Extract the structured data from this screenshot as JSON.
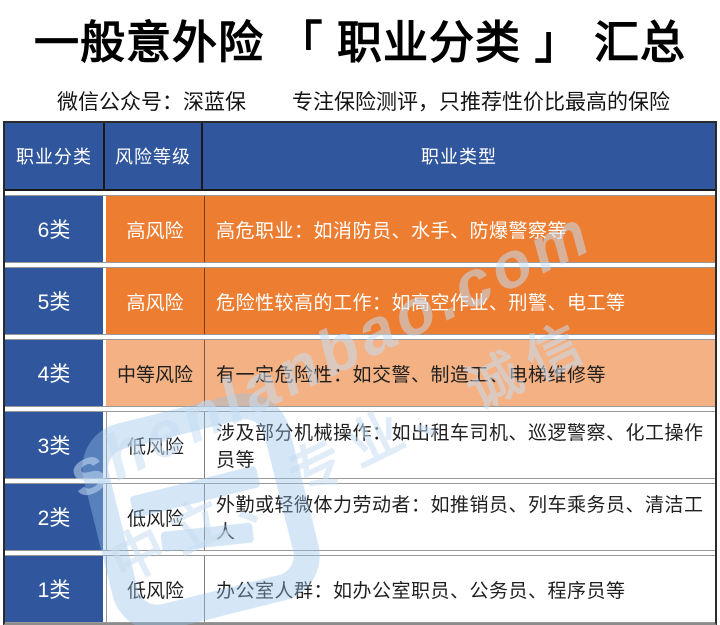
{
  "page": {
    "title": "一般意外险 「 职业分类 」 汇总",
    "subtitle_account": "微信公众号：深蓝保",
    "subtitle_tagline": "专注保险测评，只推荐性价比最高的保险"
  },
  "colors": {
    "header_blue": "#30569D",
    "high_risk_orange": "#ED7D31",
    "medium_risk_light_orange": "#F4B183",
    "low_risk_white": "#FFFFFF"
  },
  "table": {
    "headers": [
      "职业分类",
      "风险等级",
      "职业类型"
    ],
    "rows": [
      {
        "category": "6类",
        "risk": "高风险",
        "jobs": "高危职业：如消防员、水手、防爆警察等",
        "style": "orange"
      },
      {
        "category": "5类",
        "risk": "高风险",
        "jobs": "危险性较高的工作：如高空作业、刑警、电工等",
        "style": "orange"
      },
      {
        "category": "4类",
        "risk": "中等风险",
        "jobs": "有一定危险性：如交警、制造工、电梯维修等",
        "style": "light-orange"
      },
      {
        "category": "3类",
        "risk": "低风险",
        "jobs": "涉及部分机械操作：如出租车司机、巡逻警察、化工操作员等",
        "style": "white"
      },
      {
        "category": "2类",
        "risk": "低风险",
        "jobs": "外勤或轻微体力劳动者：如推销员、列车乘务员、清洁工人",
        "style": "white"
      },
      {
        "category": "1类",
        "risk": "低风险",
        "jobs": "办公室人群：如办公室职员、公务员、程序员等",
        "style": "white"
      }
    ]
  },
  "watermark": {
    "line1": "shenlanbao.com",
    "line2": "中立、专业、诚信"
  }
}
